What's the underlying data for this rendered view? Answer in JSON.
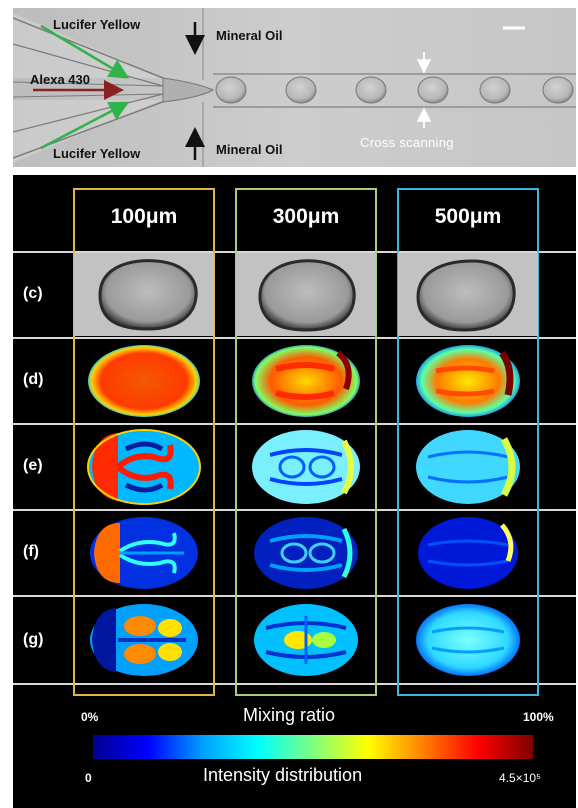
{
  "panel_top": {
    "labels": {
      "lucifer_yellow_top": "Lucifer Yellow",
      "alexa": "Alexa 430",
      "lucifer_yellow_bottom": "Lucifer Yellow",
      "mineral_oil_top": "Mineral Oil",
      "mineral_oil_bottom": "Mineral Oil",
      "cross_scanning": "Cross scanning"
    }
  },
  "panel_bottom": {
    "columns": [
      {
        "label": "100μm",
        "box_color": "#e3b53a"
      },
      {
        "label": "300μm",
        "box_color": "#a4d17a"
      },
      {
        "label": "500μm",
        "box_color": "#3bb6e0"
      }
    ],
    "rows": [
      "(c)",
      "(d)",
      "(e)",
      "(f)",
      "(g)"
    ],
    "colorbar": {
      "top_left": "0%",
      "top_title": "Mixing ratio",
      "top_right": "100%",
      "bottom_left": "0",
      "bottom_title": "Intensity distribution",
      "bottom_right": "4.5×10⁵",
      "colors": [
        "#000090",
        "#0000ff",
        "#00a0ff",
        "#00ffff",
        "#80ff80",
        "#ffff00",
        "#ff8000",
        "#ff0000",
        "#800000"
      ]
    }
  }
}
